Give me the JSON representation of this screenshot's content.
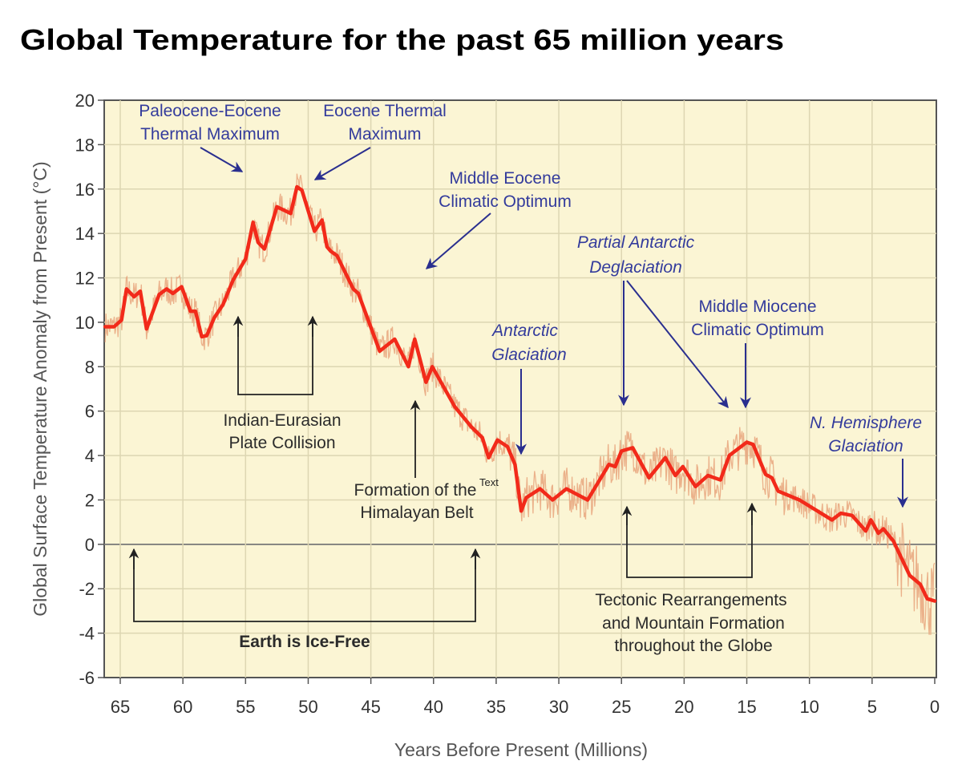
{
  "title": "Global Temperature for the past 65 million years",
  "chart_data": {
    "type": "line",
    "title": "Global Temperature for the past 65 million years",
    "xlabel": "Years Before Present (Millions)",
    "ylabel": "Global Surface Temperature Anomaly from Present (°C)",
    "xlim": [
      66.3,
      0
    ],
    "ylim": [
      -6,
      20
    ],
    "x_reversed": true,
    "xticks": [
      65,
      60,
      55,
      50,
      45,
      40,
      35,
      30,
      25,
      20,
      15,
      10,
      5,
      0
    ],
    "yticks": [
      20,
      18,
      16,
      14,
      12,
      10,
      8,
      6,
      4,
      2,
      0,
      -2,
      -4,
      -6
    ],
    "grid": true,
    "colors": {
      "smoothed": "#f22a1a",
      "raw": "#e8a57c",
      "background": "#fbf5d4",
      "annotation": "#333b9c",
      "arrow_blue": "#2a2f8f"
    },
    "series": [
      {
        "style": "smoothed",
        "x": [
          66.2,
          65.5,
          64.9,
          64.5,
          63.9,
          63.4,
          62.9,
          61.9,
          61.3,
          60.8,
          60.1,
          59.4,
          59.0,
          58.5,
          58.1,
          57.5,
          56.8,
          56.0,
          55.0,
          54.4,
          54.0,
          53.5,
          52.5,
          51.4,
          50.9,
          50.5,
          49.5,
          48.9,
          48.5,
          48.2,
          47.7,
          46.4,
          46.0,
          44.3,
          43.1,
          42.0,
          41.5,
          40.6,
          40.1,
          38.3,
          37.0,
          36.1,
          35.6,
          34.9,
          34.1,
          33.5,
          33.0,
          32.6,
          31.5,
          30.5,
          29.4,
          27.7,
          26.0,
          25.5,
          25.0,
          24.1,
          22.8,
          21.5,
          20.7,
          20.1,
          19.1,
          18.1,
          17.1,
          16.4,
          15.0,
          14.5,
          13.5,
          13.0,
          12.5,
          10.8,
          8.2,
          7.5,
          6.6,
          5.5,
          5.1,
          4.5,
          4.1,
          3.3,
          2.0,
          1.15,
          0.6,
          0
        ],
        "y": [
          9.8,
          9.8,
          10.1,
          11.5,
          11.15,
          11.4,
          9.7,
          11.25,
          11.5,
          11.3,
          11.6,
          10.5,
          10.5,
          9.35,
          9.4,
          10.2,
          10.8,
          11.9,
          12.85,
          14.5,
          13.6,
          13.3,
          15.2,
          14.9,
          16.1,
          15.95,
          14.1,
          14.6,
          13.4,
          13.2,
          13.0,
          11.5,
          11.3,
          8.7,
          9.24,
          8.0,
          9.24,
          7.3,
          8.0,
          6.2,
          5.3,
          4.8,
          3.9,
          4.7,
          4.4,
          3.6,
          1.5,
          2.1,
          2.5,
          2.0,
          2.5,
          2.0,
          3.6,
          3.5,
          4.2,
          4.35,
          3.0,
          3.9,
          3.1,
          3.5,
          2.6,
          3.1,
          2.9,
          4.0,
          4.6,
          4.5,
          3.15,
          3.0,
          2.4,
          2.0,
          1.1,
          1.4,
          1.3,
          0.6,
          1.1,
          0.5,
          0.7,
          0.15,
          -1.4,
          -1.8,
          -2.45,
          -2.55
        ]
      }
    ],
    "annotations": {
      "petm": [
        "Paleocene-Eocene",
        "Thermal Maximum"
      ],
      "etm": [
        "Eocene Thermal",
        "Maximum"
      ],
      "meco": [
        "Middle Eocene",
        "Climatic Optimum"
      ],
      "partial_deglaciation": [
        "Partial Antarctic",
        "Deglaciation"
      ],
      "antarctic_glaciation": [
        "Antarctic",
        "Glaciation"
      ],
      "mmco": [
        "Middle Miocene",
        "Climatic Optimum"
      ],
      "nh_glaciation": [
        "N. Hemisphere",
        "Glaciation"
      ],
      "indian_eurasian": [
        "Indian-Eurasian",
        "Plate Collision"
      ],
      "himalayan": [
        "Formation of the",
        "Himalayan Belt"
      ],
      "stray_text": "Text",
      "ice_free": "Earth is Ice-Free",
      "tectonic": [
        "Tectonic Rearrangements",
        "and Mountain Formation",
        "throughout the Globe"
      ]
    }
  }
}
